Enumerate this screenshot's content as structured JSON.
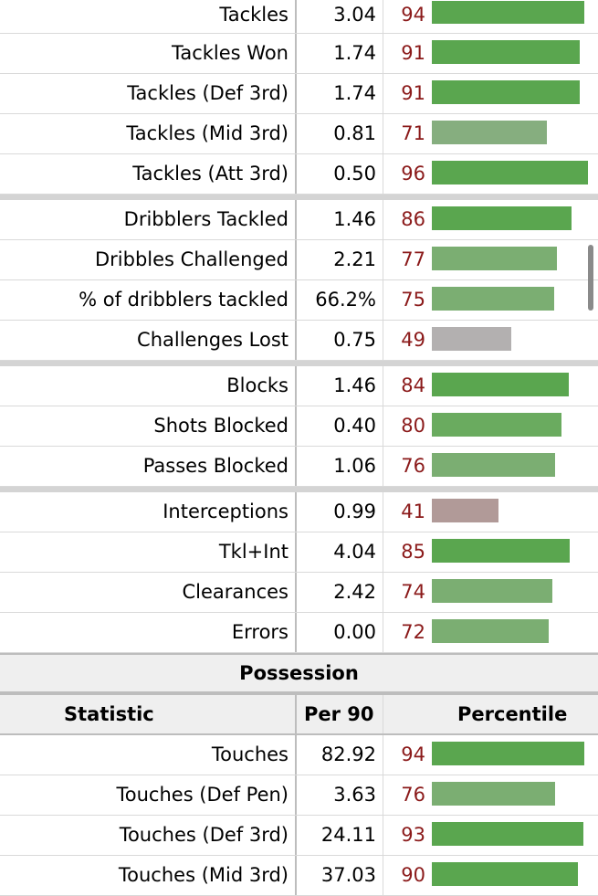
{
  "defense_groups": [
    [
      {
        "stat": "Tackles",
        "per90": "3.04",
        "pct": "94",
        "fill": 0.94,
        "color": "#5aa64f"
      },
      {
        "stat": "Tackles Won",
        "per90": "1.74",
        "pct": "91",
        "fill": 0.91,
        "color": "#5aa64f"
      },
      {
        "stat": "Tackles (Def 3rd)",
        "per90": "1.74",
        "pct": "91",
        "fill": 0.91,
        "color": "#5aa64f"
      },
      {
        "stat": "Tackles (Mid 3rd)",
        "per90": "0.81",
        "pct": "71",
        "fill": 0.71,
        "color": "#86ae7f"
      },
      {
        "stat": "Tackles (Att 3rd)",
        "per90": "0.50",
        "pct": "96",
        "fill": 0.96,
        "color": "#5aa64f"
      }
    ],
    [
      {
        "stat": "Dribblers Tackled",
        "per90": "1.46",
        "pct": "86",
        "fill": 0.86,
        "color": "#5aa64f"
      },
      {
        "stat": "Dribbles Challenged",
        "per90": "2.21",
        "pct": "77",
        "fill": 0.77,
        "color": "#7bae72"
      },
      {
        "stat": "% of dribblers tackled",
        "per90": "66.2%",
        "pct": "75",
        "fill": 0.75,
        "color": "#7bae72"
      },
      {
        "stat": "Challenges Lost",
        "per90": "0.75",
        "pct": "49",
        "fill": 0.49,
        "color": "#b3b0b0"
      }
    ],
    [
      {
        "stat": "Blocks",
        "per90": "1.46",
        "pct": "84",
        "fill": 0.84,
        "color": "#5aa64f"
      },
      {
        "stat": "Shots Blocked",
        "per90": "0.40",
        "pct": "80",
        "fill": 0.8,
        "color": "#6aab5f"
      },
      {
        "stat": "Passes Blocked",
        "per90": "1.06",
        "pct": "76",
        "fill": 0.76,
        "color": "#7bae72"
      }
    ],
    [
      {
        "stat": "Interceptions",
        "per90": "0.99",
        "pct": "41",
        "fill": 0.41,
        "color": "#b19a98"
      },
      {
        "stat": "Tkl+Int",
        "per90": "4.04",
        "pct": "85",
        "fill": 0.85,
        "color": "#5aa64f"
      },
      {
        "stat": "Clearances",
        "per90": "2.42",
        "pct": "74",
        "fill": 0.74,
        "color": "#7bae72"
      },
      {
        "stat": "Errors",
        "per90": "0.00",
        "pct": "72",
        "fill": 0.72,
        "color": "#7bae72"
      }
    ]
  ],
  "possession": {
    "title": "Possession",
    "headers": {
      "statistic": "Statistic",
      "per90": "Per 90",
      "percentile": "Percentile"
    },
    "rows": [
      {
        "stat": "Touches",
        "per90": "82.92",
        "pct": "94",
        "fill": 0.94,
        "color": "#5aa64f"
      },
      {
        "stat": "Touches (Def Pen)",
        "per90": "3.63",
        "pct": "76",
        "fill": 0.76,
        "color": "#7bae72"
      },
      {
        "stat": "Touches (Def 3rd)",
        "per90": "24.11",
        "pct": "93",
        "fill": 0.93,
        "color": "#5aa64f"
      },
      {
        "stat": "Touches (Mid 3rd)",
        "per90": "37.03",
        "pct": "90",
        "fill": 0.9,
        "color": "#5aa64f"
      }
    ]
  }
}
